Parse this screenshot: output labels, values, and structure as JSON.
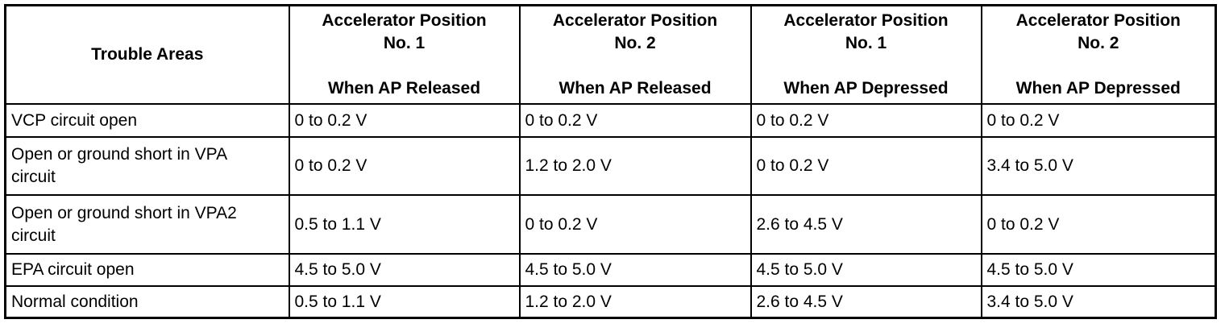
{
  "table": {
    "headers": [
      {
        "lines": [
          "Trouble Areas"
        ]
      },
      {
        "lines": [
          "Accelerator Position",
          "No. 1"
        ],
        "sub": "When AP Released"
      },
      {
        "lines": [
          "Accelerator Position",
          "No. 2"
        ],
        "sub": "When AP Released"
      },
      {
        "lines": [
          "Accelerator Position",
          "No. 1"
        ],
        "sub": "When AP Depressed"
      },
      {
        "lines": [
          "Accelerator Position",
          "No. 2"
        ],
        "sub": "When AP Depressed"
      }
    ],
    "rows": [
      {
        "area": [
          "VCP circuit open"
        ],
        "cells": [
          "0 to 0.2 V",
          "0 to 0.2 V",
          "0 to 0.2 V",
          "0 to 0.2 V"
        ]
      },
      {
        "area": [
          "Open or ground short in VPA",
          "circuit"
        ],
        "cells": [
          "0 to 0.2 V",
          "1.2 to 2.0 V",
          "0 to 0.2 V",
          "3.4 to 5.0 V"
        ]
      },
      {
        "area": [
          "Open or ground short in VPA2",
          "circuit"
        ],
        "cells": [
          "0.5 to 1.1 V",
          "0 to 0.2 V",
          "2.6 to 4.5 V",
          "0 to 0.2 V"
        ]
      },
      {
        "area": [
          "EPA circuit open"
        ],
        "cells": [
          "4.5 to 5.0 V",
          "4.5 to 5.0 V",
          "4.5 to 5.0 V",
          "4.5 to 5.0 V"
        ]
      },
      {
        "area": [
          "Normal condition"
        ],
        "cells": [
          "0.5 to 1.1 V",
          "1.2 to 2.0 V",
          "2.6 to 4.5 V",
          "3.4 to 5.0 V"
        ]
      }
    ]
  }
}
